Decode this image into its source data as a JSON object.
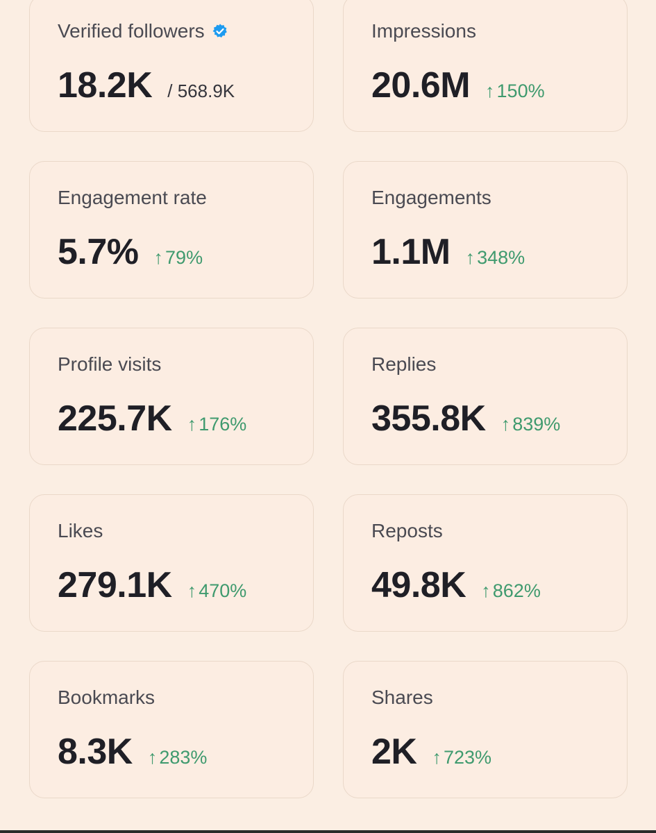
{
  "colors": {
    "background": "#fbeee3",
    "card_border": "#ead8c9",
    "text_primary": "#1f1f26",
    "text_secondary": "#4a4a52",
    "positive_delta": "#3f9a6e",
    "verified_badge": "#1d9bf0"
  },
  "metrics": {
    "verified_followers": {
      "label": "Verified followers",
      "value": "18.2K",
      "total": "/ 568.9K",
      "icon": "verified-badge-icon"
    },
    "impressions": {
      "label": "Impressions",
      "value": "20.6M",
      "delta": "150%",
      "arrow": "↑"
    },
    "engagement_rate": {
      "label": "Engagement rate",
      "value": "5.7%",
      "delta": "79%",
      "arrow": "↑"
    },
    "engagements": {
      "label": "Engagements",
      "value": "1.1M",
      "delta": "348%",
      "arrow": "↑"
    },
    "profile_visits": {
      "label": "Profile visits",
      "value": "225.7K",
      "delta": "176%",
      "arrow": "↑"
    },
    "replies": {
      "label": "Replies",
      "value": "355.8K",
      "delta": "839%",
      "arrow": "↑"
    },
    "likes": {
      "label": "Likes",
      "value": "279.1K",
      "delta": "470%",
      "arrow": "↑"
    },
    "reposts": {
      "label": "Reposts",
      "value": "49.8K",
      "delta": "862%",
      "arrow": "↑"
    },
    "bookmarks": {
      "label": "Bookmarks",
      "value": "8.3K",
      "delta": "283%",
      "arrow": "↑"
    },
    "shares": {
      "label": "Shares",
      "value": "2K",
      "delta": "723%",
      "arrow": "↑"
    }
  }
}
